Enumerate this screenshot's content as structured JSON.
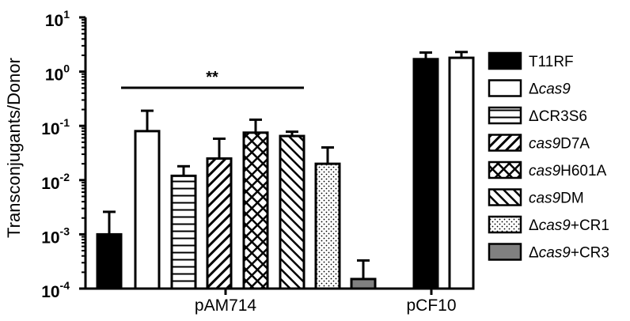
{
  "chart_data": {
    "type": "bar",
    "ylabel": "Transconjugants/Donor",
    "yscale": "log",
    "ylim": [
      0.0001,
      10
    ],
    "yticks": [
      {
        "base": "10",
        "exp": "1",
        "value": 10
      },
      {
        "base": "10",
        "exp": "0",
        "value": 1
      },
      {
        "base": "10",
        "exp": "-1",
        "value": 0.1
      },
      {
        "base": "10",
        "exp": "-2",
        "value": 0.01
      },
      {
        "base": "10",
        "exp": "-3",
        "value": 0.001
      },
      {
        "base": "10",
        "exp": "-4",
        "value": 0.0001
      }
    ],
    "groups": [
      "pAM714",
      "pCF10"
    ],
    "series": [
      {
        "name": "T11RF",
        "name_parts": [
          {
            "t": "T11RF",
            "i": false
          }
        ],
        "pattern": "solid-black",
        "values": [
          0.001,
          1.7
        ],
        "errors": [
          0.0026,
          2.25
        ]
      },
      {
        "name": "Δcas9",
        "name_parts": [
          {
            "t": "Δ",
            "i": false
          },
          {
            "t": "cas9",
            "i": true
          }
        ],
        "pattern": "white",
        "values": [
          0.08,
          1.8
        ],
        "errors": [
          0.19,
          2.3
        ]
      },
      {
        "name": "ΔCR3S6",
        "name_parts": [
          {
            "t": "ΔCR3S6",
            "i": false
          }
        ],
        "pattern": "horizontal-lines",
        "values": [
          0.012,
          null
        ],
        "errors": [
          0.018,
          null
        ]
      },
      {
        "name": "cas9D7A",
        "name_parts": [
          {
            "t": "cas9",
            "i": true
          },
          {
            "t": "D7A",
            "i": false
          }
        ],
        "pattern": "diagonal-up",
        "values": [
          0.025,
          null
        ],
        "errors": [
          0.058,
          null
        ]
      },
      {
        "name": "cas9H601A",
        "name_parts": [
          {
            "t": "cas9",
            "i": true
          },
          {
            "t": "H601A",
            "i": false
          }
        ],
        "pattern": "crosshatch",
        "values": [
          0.075,
          null
        ],
        "errors": [
          0.13,
          null
        ]
      },
      {
        "name": "cas9DM",
        "name_parts": [
          {
            "t": "cas9",
            "i": true
          },
          {
            "t": "DM",
            "i": false
          }
        ],
        "pattern": "diagonal-down",
        "values": [
          0.065,
          null
        ],
        "errors": [
          0.078,
          null
        ]
      },
      {
        "name": "Δcas9+CR1",
        "name_parts": [
          {
            "t": "Δ",
            "i": false
          },
          {
            "t": "cas9",
            "i": true
          },
          {
            "t": "+CR1",
            "i": false
          }
        ],
        "pattern": "dots",
        "values": [
          0.02,
          null
        ],
        "errors": [
          0.04,
          null
        ]
      },
      {
        "name": "Δcas9+CR3",
        "name_parts": [
          {
            "t": "Δ",
            "i": false
          },
          {
            "t": "cas9",
            "i": true
          },
          {
            "t": "+CR3",
            "i": false
          }
        ],
        "pattern": "solid-gray",
        "values": [
          0.00015,
          null
        ],
        "errors": [
          0.00033,
          null
        ]
      }
    ],
    "significance": {
      "label": "**",
      "from_series": 0,
      "to_series": 5,
      "group": 0,
      "y": 0.55
    },
    "legend_position": "right",
    "grid": false,
    "colors": {
      "black": "#000000",
      "gray": "#808080",
      "white": "#ffffff"
    }
  }
}
